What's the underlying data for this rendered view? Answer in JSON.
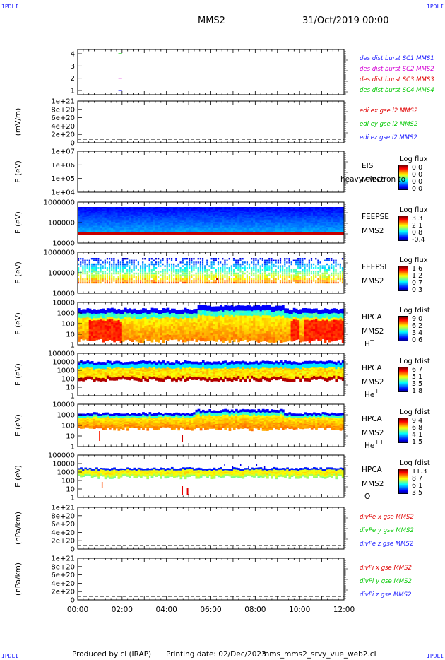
{
  "header": {
    "corner_label": "IPDLI",
    "spacecraft": "MMS2",
    "datetime": "31/Oct/2019 00:00"
  },
  "footer": {
    "produced_by": "Produced by cl (IRAP)",
    "printing_date": "Printing date: 02/Dec/2023",
    "filename": "mms_mms2_srvy_vue_web2.cl"
  },
  "chart_data": {
    "type": "multi-panel time series / spectrogram",
    "time_axis": {
      "range": [
        "00:00",
        "12:00"
      ],
      "tick_labels": [
        "00:00",
        "02:00",
        "04:00",
        "06:00",
        "08:00",
        "10:00",
        "12:00"
      ]
    },
    "panels": [
      {
        "id": "burst",
        "type": "line",
        "ylim": [
          0.5,
          4.5
        ],
        "tick_labels": [
          "4",
          "3",
          "2",
          "1"
        ],
        "legend": [
          {
            "name": "des dist burst SC1 MMS1",
            "color": "#1a1aff"
          },
          {
            "name": "des dist burst SC2 MMS2",
            "color": "#d400d4"
          },
          {
            "name": "des dist burst SC3 MMS3",
            "color": "#e00000"
          },
          {
            "name": "des dist burst SC4 MMS4",
            "color": "#00c800"
          }
        ],
        "segments": [
          {
            "y": 4,
            "t_start": "01:50",
            "t_end": "02:00",
            "color": "#00c800"
          },
          {
            "y": 2,
            "t_start": "01:50",
            "t_end": "02:00",
            "color": "#d400d4"
          },
          {
            "y": 1,
            "t_start": "01:50",
            "t_end": "02:00",
            "color": "#1a1aff"
          }
        ]
      },
      {
        "id": "edi",
        "type": "line",
        "ylabel": "(mV/m)",
        "tick_labels": [
          "1e+21",
          "8e+20",
          "6e+20",
          "4e+20",
          "2e+20",
          "0"
        ],
        "legend": [
          {
            "name": "edi ex gse l2 MMS2",
            "color": "#e00000"
          },
          {
            "name": "edi ey gse l2 MMS2",
            "color": "#00c800"
          },
          {
            "name": "edi ez gse l2 MMS2",
            "color": "#1a1aff"
          }
        ],
        "zero_line": true
      },
      {
        "id": "eis",
        "type": "heatmap",
        "ylabel": "E (eV)",
        "tick_labels": [
          "1e+07",
          "1e+06",
          "1e+05",
          "1e+04"
        ],
        "labels": [
          "EIS",
          "MMS2"
        ],
        "overlay_text": "heavy electron to",
        "colorbar": {
          "title": "Log flux",
          "ticks": [
            "0.0",
            "0.0",
            "0.0",
            "0.0"
          ]
        }
      },
      {
        "id": "feepse",
        "type": "heatmap",
        "ylabel": "E (eV)",
        "tick_labels": [
          "1000000",
          "100000",
          "10000"
        ],
        "labels": [
          "FEEPSE",
          "MMS2"
        ],
        "colorbar": {
          "title": "Log flux",
          "ticks": [
            "3.3",
            "2.1",
            "0.8",
            "-0.4"
          ]
        }
      },
      {
        "id": "feepsi",
        "type": "heatmap",
        "ylabel": "E (eV)",
        "tick_labels": [
          "1000000",
          "100000",
          "10000"
        ],
        "labels": [
          "FEEPSI",
          "MMS2"
        ],
        "colorbar": {
          "title": "Log flux",
          "ticks": [
            "1.6",
            "1.2",
            "0.7",
            "0.3"
          ]
        }
      },
      {
        "id": "hpca-h",
        "type": "heatmap",
        "ylabel": "E (eV)",
        "tick_labels": [
          "10000",
          "1000",
          "100",
          "10",
          "1"
        ],
        "labels": [
          "HPCA",
          "MMS2",
          "H",
          "+"
        ],
        "colorbar": {
          "title": "Log fdist",
          "ticks": [
            "9.0",
            "6.2",
            "3.4",
            "0.6"
          ]
        }
      },
      {
        "id": "hpca-he",
        "type": "heatmap",
        "ylabel": "E (eV)",
        "tick_labels": [
          "100000",
          "10000",
          "1000",
          "100",
          "10",
          "1"
        ],
        "labels": [
          "HPCA",
          "MMS2",
          "He",
          "+"
        ],
        "colorbar": {
          "title": "Log fdist",
          "ticks": [
            "6.7",
            "5.1",
            "3.5",
            "1.8"
          ]
        }
      },
      {
        "id": "hpca-hepp",
        "type": "heatmap",
        "ylabel": "E (eV)",
        "tick_labels": [
          "10000",
          "1000",
          "100",
          "10",
          "1"
        ],
        "labels": [
          "HPCA",
          "MMS2",
          "He",
          "++"
        ],
        "colorbar": {
          "title": "Log fdist",
          "ticks": [
            "9.4",
            "6.8",
            "4.1",
            "1.5"
          ]
        }
      },
      {
        "id": "hpca-o",
        "type": "heatmap",
        "ylabel": "E (eV)",
        "tick_labels": [
          "100000",
          "10000",
          "1000",
          "100",
          "10",
          "1"
        ],
        "labels": [
          "HPCA",
          "MMS2",
          "O",
          "+"
        ],
        "colorbar": {
          "title": "Log fdist",
          "ticks": [
            "11.3",
            "8.7",
            "6.1",
            "3.5"
          ]
        }
      },
      {
        "id": "divpe",
        "type": "line",
        "ylabel": "(nPa/km)",
        "tick_labels": [
          "1e+21",
          "8e+20",
          "6e+20",
          "4e+20",
          "2e+20",
          "0"
        ],
        "legend": [
          {
            "name": "divPe x gse MMS2",
            "color": "#e00000"
          },
          {
            "name": "divPe y gse MMS2",
            "color": "#00c800"
          },
          {
            "name": "divPe z gse MMS2",
            "color": "#1a1aff"
          }
        ],
        "zero_line": true
      },
      {
        "id": "divpi",
        "type": "line",
        "ylabel": "(nPa/km)",
        "tick_labels": [
          "1e+21",
          "8e+20",
          "6e+20",
          "4e+20",
          "2e+20",
          "0"
        ],
        "legend": [
          {
            "name": "divPi x gse MMS2",
            "color": "#e00000"
          },
          {
            "name": "divPi y gse MMS2",
            "color": "#00c800"
          },
          {
            "name": "divPi z gse MMS2",
            "color": "#1a1aff"
          }
        ],
        "zero_line": true
      }
    ]
  }
}
